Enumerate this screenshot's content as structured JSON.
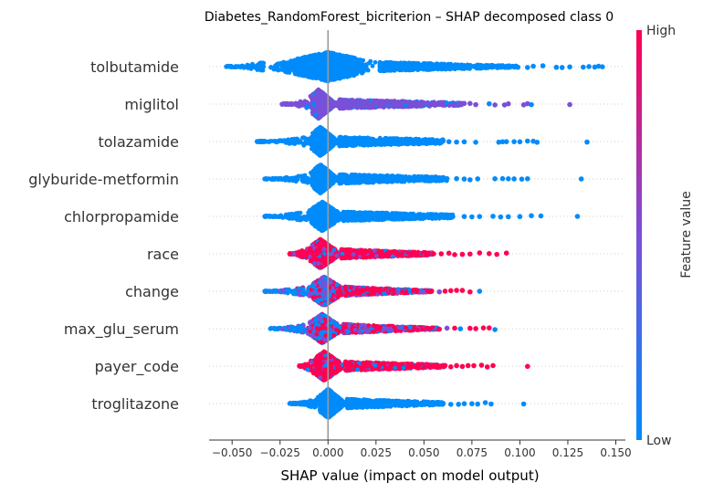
{
  "chart_data": {
    "type": "scatter",
    "subtype": "shap-beeswarm",
    "title": "Diabetes_RandomForest_bicriterion – SHAP decomposed class 0",
    "xlabel": "SHAP value (impact on model output)",
    "xlim": [
      -0.062,
      0.155
    ],
    "xticks": [
      {
        "value": -0.05,
        "label": "−0.050"
      },
      {
        "value": -0.025,
        "label": "−0.025"
      },
      {
        "value": 0.0,
        "label": "0.000"
      },
      {
        "value": 0.025,
        "label": "0.025"
      },
      {
        "value": 0.05,
        "label": "0.050"
      },
      {
        "value": 0.075,
        "label": "0.075"
      },
      {
        "value": 0.1,
        "label": "0.100"
      },
      {
        "value": 0.125,
        "label": "0.125"
      },
      {
        "value": 0.15,
        "label": "0.150"
      }
    ],
    "colorbar": {
      "title": "Feature value",
      "high_label": "High",
      "low_label": "Low",
      "low_color": "#008bfb",
      "mid_color": "#7b4fd8",
      "high_color": "#ff0052"
    },
    "grid": false,
    "features": [
      {
        "name": "tolbutamide",
        "min": -0.053,
        "max": 0.143,
        "core": [
          -0.033,
          0.027
        ],
        "mode": 0.0,
        "color": "low",
        "outliers": [
          0.099,
          0.104,
          0.107,
          0.112,
          0.119,
          0.122,
          0.126,
          0.133,
          0.136,
          0.139,
          0.141,
          0.143
        ]
      },
      {
        "name": "miglitol",
        "min": -0.024,
        "max": 0.126,
        "core": [
          -0.01,
          0.006
        ],
        "mode": -0.005,
        "color": "mid",
        "outliers": [
          0.071,
          0.074,
          0.077,
          0.084,
          0.087,
          0.092,
          0.094,
          0.102,
          0.104,
          0.106,
          0.126
        ]
      },
      {
        "name": "tolazamide",
        "min": -0.037,
        "max": 0.135,
        "core": [
          -0.01,
          0.006
        ],
        "mode": -0.004,
        "color": "low",
        "outliers": [
          0.06,
          0.063,
          0.067,
          0.071,
          0.077,
          0.089,
          0.091,
          0.093,
          0.097,
          0.1,
          0.104,
          0.107,
          0.109,
          0.135
        ]
      },
      {
        "name": "glyburide-metformin",
        "min": -0.033,
        "max": 0.132,
        "core": [
          -0.01,
          0.006
        ],
        "mode": -0.004,
        "color": "low",
        "outliers": [
          0.062,
          0.067,
          0.071,
          0.074,
          0.078,
          0.087,
          0.091,
          0.094,
          0.097,
          0.101,
          0.104,
          0.132
        ]
      },
      {
        "name": "chlorpropamide",
        "min": -0.033,
        "max": 0.13,
        "core": [
          -0.012,
          0.008
        ],
        "mode": -0.003,
        "color": "low",
        "outliers": [
          0.065,
          0.071,
          0.075,
          0.079,
          0.086,
          0.09,
          0.094,
          0.1,
          0.106,
          0.111,
          0.13
        ]
      },
      {
        "name": "race",
        "min": -0.02,
        "max": 0.093,
        "core": [
          -0.012,
          0.007
        ],
        "mode": -0.004,
        "color": "high",
        "outliers": [
          0.055,
          0.059,
          0.063,
          0.066,
          0.07,
          0.074,
          0.079,
          0.084,
          0.088,
          0.093
        ]
      },
      {
        "name": "change",
        "min": -0.033,
        "max": 0.079,
        "core": [
          -0.012,
          0.009
        ],
        "mode": -0.002,
        "color": "mixed",
        "outliers": [
          0.054,
          0.058,
          0.061,
          0.064,
          0.067,
          0.07,
          0.074,
          0.079
        ]
      },
      {
        "name": "max_glu_serum",
        "min": -0.03,
        "max": 0.087,
        "core": [
          -0.012,
          0.008
        ],
        "mode": -0.003,
        "color": "mixed",
        "outliers": [
          0.058,
          0.062,
          0.066,
          0.069,
          0.074,
          0.077,
          0.081,
          0.084,
          0.087
        ]
      },
      {
        "name": "payer_code",
        "min": -0.015,
        "max": 0.104,
        "core": [
          -0.01,
          0.009
        ],
        "mode": -0.002,
        "color": "high",
        "outliers": [
          0.061,
          0.064,
          0.067,
          0.07,
          0.073,
          0.076,
          0.08,
          0.083,
          0.086,
          0.104
        ]
      },
      {
        "name": "troglitazone",
        "min": -0.02,
        "max": 0.102,
        "core": [
          -0.006,
          0.01
        ],
        "mode": 0.0,
        "color": "low",
        "outliers": [
          0.06,
          0.064,
          0.068,
          0.071,
          0.075,
          0.078,
          0.082,
          0.085,
          0.102
        ]
      }
    ]
  }
}
